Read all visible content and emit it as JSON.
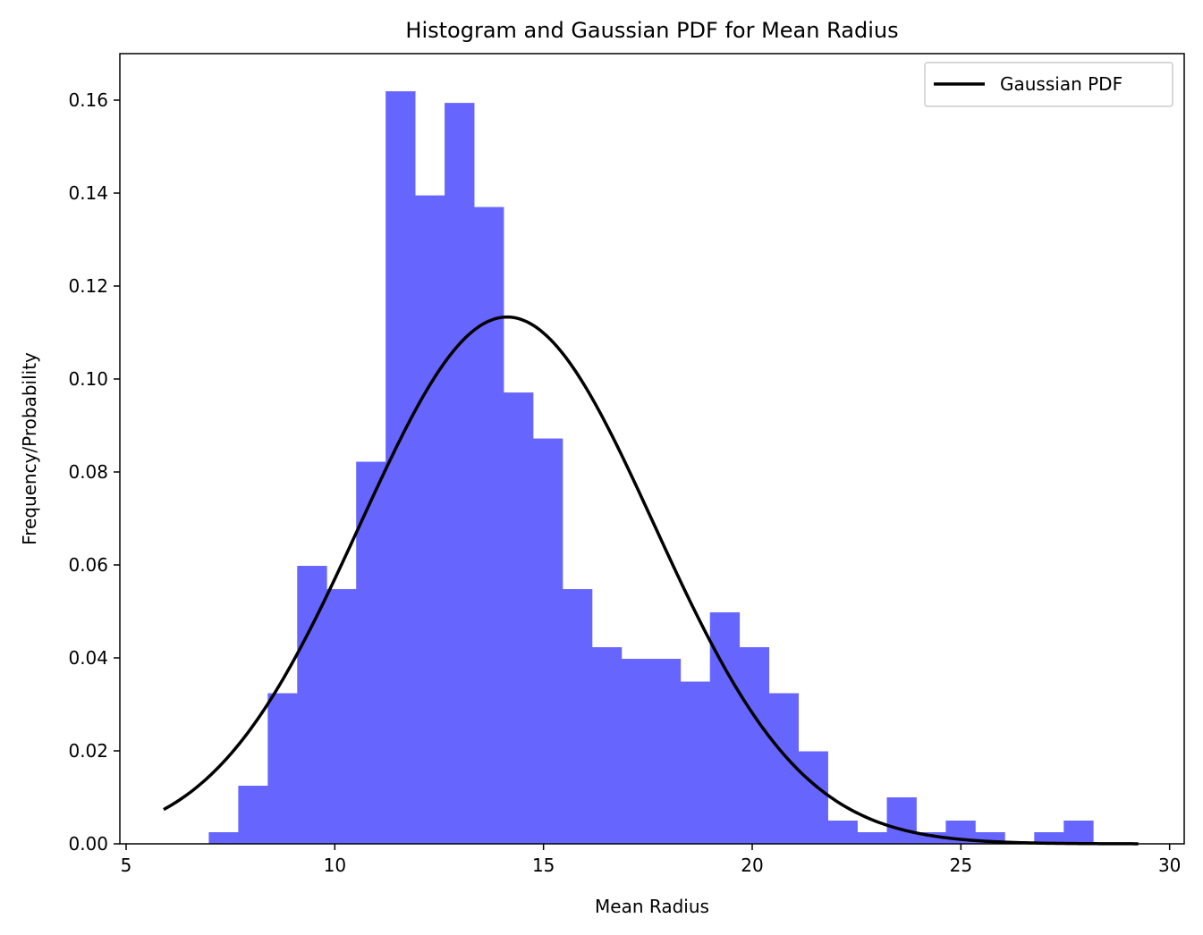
{
  "chart_data": {
    "type": "bar",
    "title": "Histogram and Gaussian PDF for Mean Radius",
    "xlabel": "Mean Radius",
    "ylabel": "Frequency/Probability",
    "xlim": [
      4.85,
      30.35
    ],
    "ylim": [
      0,
      0.17
    ],
    "xticks": [
      5,
      10,
      15,
      20,
      25,
      30
    ],
    "yticks": [
      0.0,
      0.02,
      0.04,
      0.06,
      0.08,
      0.1,
      0.12,
      0.14,
      0.16
    ],
    "ytick_labels": [
      "0.00",
      "0.02",
      "0.04",
      "0.06",
      "0.08",
      "0.10",
      "0.12",
      "0.14",
      "0.16"
    ],
    "grid": false,
    "legend_placement": "top-right",
    "histogram": {
      "color": "#6666ff",
      "bin_start": 6.98,
      "bin_width": 0.7063,
      "values": [
        0.0025,
        0.0125,
        0.0324,
        0.0598,
        0.0548,
        0.0822,
        0.1619,
        0.1395,
        0.1594,
        0.137,
        0.0971,
        0.0872,
        0.0548,
        0.0423,
        0.0398,
        0.0398,
        0.0349,
        0.0498,
        0.0423,
        0.0324,
        0.0199,
        0.005,
        0.0025,
        0.01,
        0.0025,
        0.005,
        0.0025,
        0.0,
        0.0025,
        0.005
      ]
    },
    "series": [
      {
        "name": "Gaussian PDF",
        "color": "#000000",
        "kind": "line",
        "mean": 14.127,
        "std": 3.52,
        "x_range": [
          5.9,
          29.25
        ]
      }
    ],
    "legend": [
      "Gaussian PDF"
    ]
  }
}
